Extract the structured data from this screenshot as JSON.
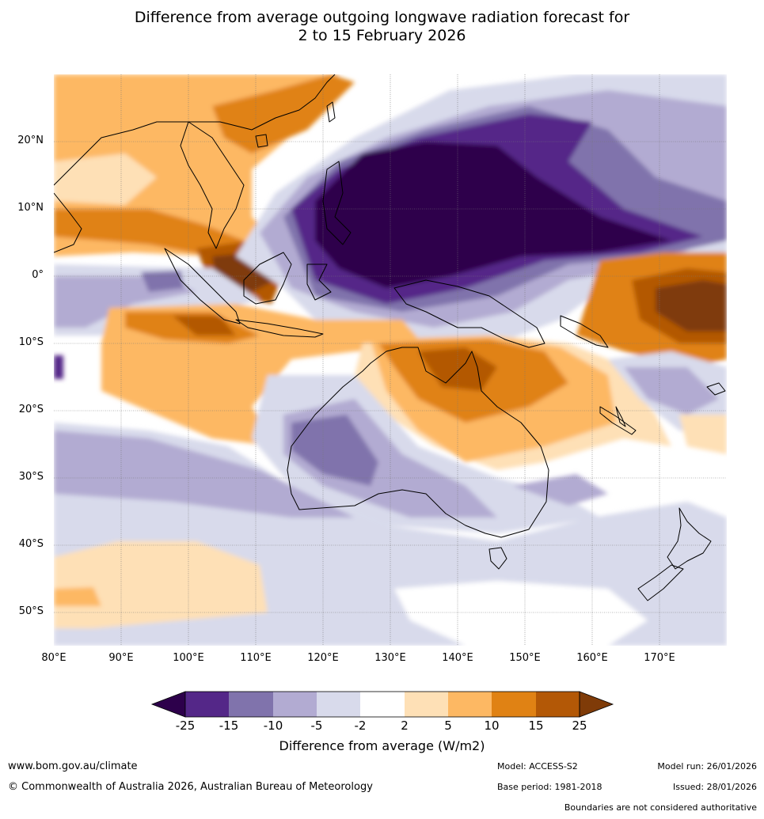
{
  "title": {
    "line1": "Difference from average outgoing longwave radiation forecast for",
    "line2": "2 to 15 February 2026"
  },
  "map": {
    "lat_labels": [
      "20°N",
      "10°N",
      "0°",
      "10°S",
      "20°S",
      "30°S",
      "40°S",
      "50°S"
    ],
    "lon_labels": [
      "80°E",
      "90°E",
      "100°E",
      "110°E",
      "120°E",
      "130°E",
      "140°E",
      "150°E",
      "160°E",
      "170°E"
    ],
    "extent": {
      "lon_min": 80,
      "lon_max": 180,
      "lat_min": -55,
      "lat_max": 30
    }
  },
  "colorbar": {
    "ticks": [
      "-25",
      "-15",
      "-10",
      "-5",
      "-2",
      "2",
      "5",
      "10",
      "15",
      "25"
    ],
    "colors": {
      "lt_minus25": "#2d004b",
      "m25_m15": "#542788",
      "m15_m10": "#8073ac",
      "m10_m5": "#b2abd2",
      "m5_m2": "#d8daeb",
      "m2_p2": "#ffffff",
      "p2_p5": "#fee0b6",
      "p5_p10": "#fdb863",
      "p10_p15": "#e08214",
      "p15_p25": "#b35806",
      "gt_25": "#7f3b08"
    },
    "label": "Difference from average (W/m2)"
  },
  "footer": {
    "website": "www.bom.gov.au/climate",
    "copyright": "© Commonwealth of Australia 2026, Australian Bureau of Meteorology",
    "model": "Model: ACCESS-S2",
    "model_run": "Model run: 26/01/2026",
    "base_period": "Base period: 1981-2018",
    "issued": "Issued: 28/01/2026",
    "disclaimer": "Boundaries are not considered authoritative"
  }
}
